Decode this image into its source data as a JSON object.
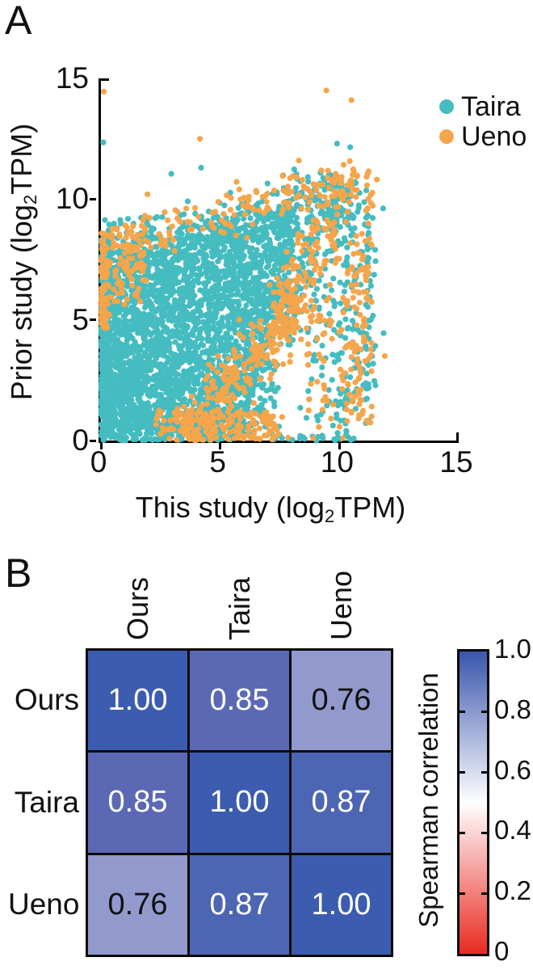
{
  "panelA": {
    "label": "A",
    "xlabel": {
      "pre": "This study (log",
      "sub": "2",
      "post": "TPM)"
    },
    "ylabel": {
      "pre": "Prior study (log",
      "sub": "2",
      "post": "TPM)"
    },
    "legend": [
      {
        "name": "Taira",
        "color": "#45bcc0"
      },
      {
        "name": "Ueno",
        "color": "#f5a54b"
      }
    ]
  },
  "panelB": {
    "label": "B"
  },
  "chart_data": [
    {
      "type": "scatter",
      "title": "",
      "xlabel": "This study (log2TPM)",
      "ylabel": "Prior study (log2TPM)",
      "xlim": [
        0,
        15
      ],
      "ylim": [
        0,
        15
      ],
      "xticks": [
        0,
        5,
        10,
        15
      ],
      "yticks": [
        0,
        5,
        10,
        15
      ],
      "grid": false,
      "legend_position": "top-right",
      "point_radius_px": 3.6,
      "series": [
        {
          "name": "Taira",
          "color": "#45bcc0",
          "clusters": [
            {
              "kind": "quad",
              "corners": [
                [
                  0,
                  0
                ],
                [
                  0,
                  7.0
                ],
                [
                  8.6,
                  9.9
                ],
                [
                  5.8,
                  0
                ]
              ],
              "n": 3000
            },
            {
              "kind": "band",
              "from": [
                0.05,
                0
              ],
              "to": [
                0.05,
                8.5
              ],
              "sd": 0.15,
              "n": 260
            },
            {
              "kind": "band",
              "from": [
                0,
                7.3
              ],
              "to": [
                8.6,
                10.0
              ],
              "sd": 0.5,
              "n": 260
            },
            {
              "kind": "band",
              "from": [
                5.8,
                0.3
              ],
              "to": [
                8.8,
                8.5
              ],
              "sd": 0.55,
              "n": 220
            },
            {
              "kind": "rect",
              "x": [
                8.6,
                11.3
              ],
              "y": [
                0.3,
                10.8
              ],
              "n": 150
            },
            {
              "kind": "band",
              "from": [
                10.2,
                0.5
              ],
              "to": [
                10.2,
                9.5
              ],
              "sd": 0.25,
              "n": 55
            },
            {
              "kind": "band",
              "from": [
                11.25,
                2.0
              ],
              "to": [
                11.25,
                9.0
              ],
              "sd": 0.18,
              "n": 35
            },
            {
              "kind": "blob",
              "c": [
                9.6,
                9.8
              ],
              "sx": 0.75,
              "sy": 0.7,
              "n": 120
            },
            {
              "kind": "band",
              "from": [
                7.2,
                0.06
              ],
              "to": [
                10.6,
                0.06
              ],
              "sd": 0.08,
              "n": 26
            },
            {
              "kind": "rect",
              "x": [
                0.1,
                2.6
              ],
              "y": [
                7.0,
                9.3
              ],
              "n": 70
            }
          ],
          "outliers": [
            [
              0.1,
              12.35
            ],
            [
              4.2,
              11.3
            ],
            [
              2.95,
              11.05
            ],
            [
              9.9,
              12.3
            ],
            [
              10.45,
              12.15
            ],
            [
              11.2,
              9.3
            ],
            [
              11.5,
              7.9
            ],
            [
              11.85,
              4.45
            ],
            [
              11.0,
              2.3
            ],
            [
              9.3,
              1.2
            ]
          ]
        },
        {
          "name": "Ueno",
          "color": "#f5a54b",
          "clusters": [
            {
              "kind": "band",
              "from": [
                0.07,
                4.6
              ],
              "to": [
                0.07,
                8.6
              ],
              "sd": 0.16,
              "n": 80
            },
            {
              "kind": "rect",
              "x": [
                0.1,
                1.9
              ],
              "y": [
                5.6,
                8.8
              ],
              "n": 70
            },
            {
              "kind": "band",
              "from": [
                0.6,
                8.0
              ],
              "to": [
                8.6,
                10.35
              ],
              "sd": 0.5,
              "n": 120
            },
            {
              "kind": "band",
              "from": [
                3.4,
                0.2
              ],
              "to": [
                8.6,
                6.0
              ],
              "sd": 0.55,
              "n": 290
            },
            {
              "kind": "rect",
              "x": [
                2.3,
                7.6
              ],
              "y": [
                0.02,
                1.25
              ],
              "n": 150
            },
            {
              "kind": "band",
              "from": [
                7.3,
                4.3
              ],
              "to": [
                9.3,
                9.0
              ],
              "sd": 0.4,
              "n": 100
            },
            {
              "kind": "rect",
              "x": [
                8.6,
                11.4
              ],
              "y": [
                0.5,
                11.2
              ],
              "n": 170
            },
            {
              "kind": "blob",
              "c": [
                9.95,
                10.5
              ],
              "sx": 0.7,
              "sy": 0.5,
              "n": 45
            },
            {
              "kind": "band",
              "from": [
                10.9,
                1.4
              ],
              "to": [
                10.9,
                8.6
              ],
              "sd": 0.22,
              "n": 45
            }
          ],
          "outliers": [
            [
              0.12,
              14.45
            ],
            [
              9.45,
              14.5
            ],
            [
              10.5,
              14.1
            ],
            [
              4.15,
              12.5
            ],
            [
              1.95,
              10.2
            ],
            [
              5.45,
              10.05
            ],
            [
              5.8,
              10.4
            ],
            [
              8.3,
              11.6
            ],
            [
              11.9,
              3.5
            ],
            [
              11.35,
              1.0
            ],
            [
              10.15,
              0.1
            ],
            [
              8.9,
              0.1
            ],
            [
              7.85,
              0.12
            ],
            [
              6.2,
              10.1
            ]
          ]
        }
      ]
    },
    {
      "type": "heatmap",
      "categories": [
        "Ours",
        "Taira",
        "Ueno"
      ],
      "matrix": [
        [
          1.0,
          0.85,
          0.76
        ],
        [
          0.85,
          1.0,
          0.87
        ],
        [
          0.76,
          0.87,
          1.0
        ]
      ],
      "value_format_decimals": 2,
      "cell_colors": {
        "1.00": "#3c5cb0",
        "0.87": "#4c66b4",
        "0.85": "#5b69b5",
        "0.76": "#9299cd"
      },
      "text_color_light": "#ffffff",
      "text_color_dark": "#111111",
      "light_text_threshold": 0.8,
      "colorbar": {
        "label": "Spearman correlation",
        "range": [
          0,
          1
        ],
        "ticks": [
          {
            "v": 1.0,
            "label": "1.0"
          },
          {
            "v": 0.8,
            "label": "0.8"
          },
          {
            "v": 0.6,
            "label": "0.6"
          },
          {
            "v": 0.4,
            "label": "0.4"
          },
          {
            "v": 0.2,
            "label": "0.2"
          },
          {
            "v": 0.0,
            "label": "0"
          }
        ],
        "colormap": {
          "low": "#e92a21",
          "mid": "#ffffff",
          "high": "#3a56ac"
        }
      }
    }
  ]
}
